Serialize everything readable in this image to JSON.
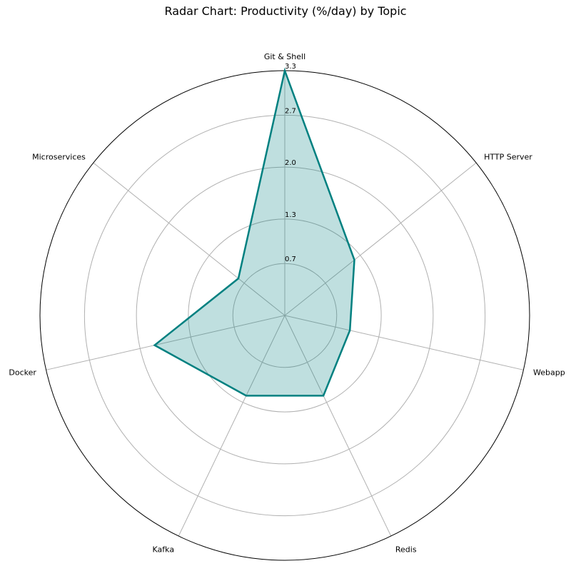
{
  "chart_data": {
    "type": "radar",
    "title": "Radar Chart: Productivity (%/day) by Topic",
    "categories": [
      "Git & Shell",
      "HTTP Server",
      "Webapp",
      "Redis",
      "Kafka",
      "Docker",
      "Microservices"
    ],
    "series": [
      {
        "values": [
          3.3,
          1.2,
          0.9,
          1.2,
          1.2,
          1.8,
          0.8
        ]
      }
    ],
    "radial_ticks": [
      0.7,
      1.3,
      2.0,
      2.7,
      3.3
    ],
    "rlim": [
      0,
      3.3
    ],
    "grid": true,
    "colors": {
      "line": "#008080",
      "fill": "#008080",
      "grid": "#b0b0b0",
      "outer": "#000000"
    }
  }
}
